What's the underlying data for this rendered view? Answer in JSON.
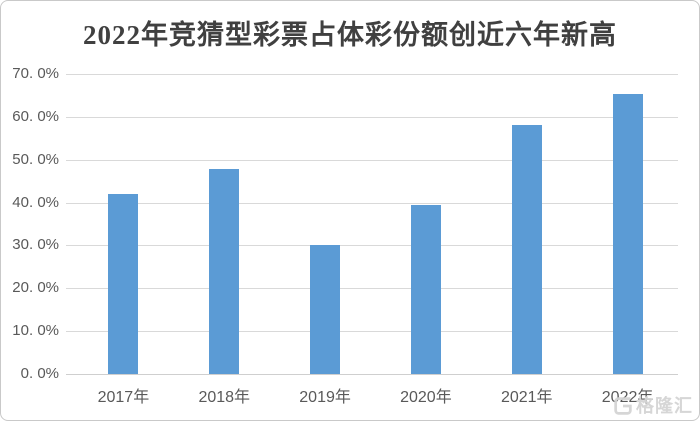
{
  "chart_data": {
    "type": "bar",
    "title": "2022年竞猜型彩票占体彩份额创近六年新高",
    "categories": [
      "2017年",
      "2018年",
      "2019年",
      "2020年",
      "2021年",
      "2022年"
    ],
    "values": [
      42.0,
      47.8,
      30.0,
      39.5,
      58.0,
      65.3
    ],
    "unit": "%",
    "xlabel": "",
    "ylabel": "",
    "ylim": [
      0,
      70
    ],
    "y_tick_step": 10,
    "y_tick_labels": [
      "70. 0%",
      "60. 0%",
      "50. 0%",
      "40. 0%",
      "30. 0%",
      "20. 0%",
      "10. 0%",
      "0. 0%"
    ],
    "grid": true,
    "legend": false,
    "bar_color": "#5b9bd5",
    "gridline_color": "#d9d9d9",
    "label_color": "#595959",
    "title_color": "#404040"
  },
  "watermark": {
    "logo": "G",
    "text": "格隆汇",
    "color": "#d4d4d4"
  }
}
